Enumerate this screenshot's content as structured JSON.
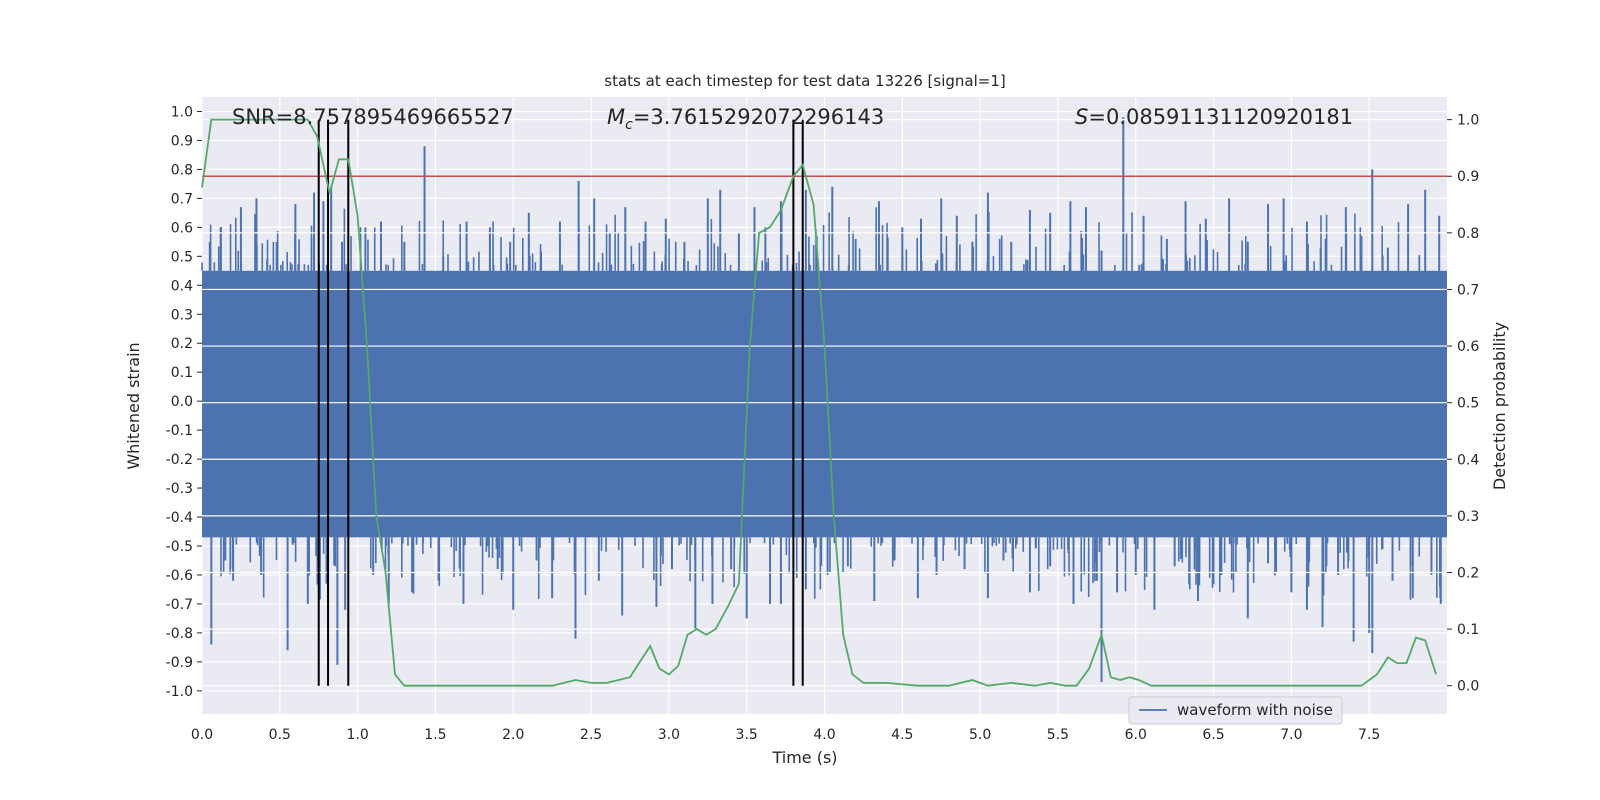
{
  "chart_data": {
    "type": "line",
    "title": "stats at each timestep for test data 13226 [signal=1]",
    "xlabel": "Time (s)",
    "ylabel_left": "Whitened strain",
    "ylabel_right": "Detection probability",
    "xlim": [
      0.0,
      8.0
    ],
    "ylim_left": [
      -1.08,
      1.05
    ],
    "ylim_right": [
      -0.05,
      1.04
    ],
    "x_ticks": [
      "0.0",
      "0.5",
      "1.0",
      "1.5",
      "2.0",
      "2.5",
      "3.0",
      "3.5",
      "4.0",
      "4.5",
      "5.0",
      "5.5",
      "6.0",
      "6.5",
      "7.0",
      "7.5"
    ],
    "y_ticks_left": [
      "1.0",
      "0.9",
      "0.8",
      "0.7",
      "0.6",
      "0.5",
      "0.4",
      "0.3",
      "0.2",
      "0.1",
      "0.0",
      "-0.1",
      "-0.2",
      "-0.3",
      "-0.4",
      "-0.5",
      "-0.6",
      "-0.7",
      "-0.8",
      "-0.9",
      "-1.0"
    ],
    "y_ticks_right": [
      "1.0",
      "0.9",
      "0.8",
      "0.7",
      "0.6",
      "0.5",
      "0.4",
      "0.3",
      "0.2",
      "0.1",
      "0.0"
    ],
    "annotations": {
      "snr": "SNR=8.757895469665527",
      "mc": "=3.7615292072296143",
      "mc_symbol": "M",
      "mc_sub": "c",
      "s": "=0.08591131120920181",
      "s_symbol": "S"
    },
    "threshold": {
      "value": 0.9,
      "axis": "right",
      "color": "#c44e52"
    },
    "vertical_lines": [
      0.75,
      0.81,
      0.94,
      3.8,
      3.86
    ],
    "grid": true,
    "legend": {
      "position": "lower-right",
      "entries": [
        "waveform with noise"
      ]
    },
    "series": [
      {
        "name": "waveform with noise",
        "axis": "left",
        "color": "#4c72b0",
        "dense_band": [
          -0.47,
          0.45
        ],
        "peaks_pos": [
          [
            0.05,
            0.55
          ],
          [
            0.12,
            0.6
          ],
          [
            0.25,
            0.67
          ],
          [
            0.35,
            0.7
          ],
          [
            0.48,
            0.55
          ],
          [
            0.6,
            0.68
          ],
          [
            0.72,
            0.72
          ],
          [
            0.78,
            0.69
          ],
          [
            0.83,
            0.74
          ],
          [
            0.9,
            0.55
          ],
          [
            1.05,
            0.6
          ],
          [
            1.15,
            0.62
          ],
          [
            1.3,
            0.55
          ],
          [
            1.43,
            0.88
          ],
          [
            1.55,
            0.5
          ],
          [
            1.7,
            0.62
          ],
          [
            1.85,
            0.6
          ],
          [
            1.98,
            0.55
          ],
          [
            2.1,
            0.65
          ],
          [
            2.3,
            0.62
          ],
          [
            2.42,
            0.76
          ],
          [
            2.52,
            0.7
          ],
          [
            2.62,
            0.58
          ],
          [
            2.72,
            0.67
          ],
          [
            2.85,
            0.62
          ],
          [
            2.98,
            0.63
          ],
          [
            3.1,
            0.55
          ],
          [
            3.25,
            0.7
          ],
          [
            3.33,
            0.73
          ],
          [
            3.45,
            0.58
          ],
          [
            3.55,
            0.67
          ],
          [
            3.62,
            0.6
          ],
          [
            3.72,
            0.69
          ],
          [
            3.88,
            0.73
          ],
          [
            3.95,
            0.57
          ],
          [
            4.05,
            0.74
          ],
          [
            4.2,
            0.56
          ],
          [
            4.35,
            0.69
          ],
          [
            4.5,
            0.6
          ],
          [
            4.62,
            0.63
          ],
          [
            4.75,
            0.7
          ],
          [
            4.85,
            0.64
          ],
          [
            4.95,
            0.55
          ],
          [
            5.05,
            0.72
          ],
          [
            5.2,
            0.55
          ],
          [
            5.32,
            0.66
          ],
          [
            5.45,
            0.65
          ],
          [
            5.58,
            0.69
          ],
          [
            5.68,
            0.67
          ],
          [
            5.78,
            0.52
          ],
          [
            5.92,
            0.98
          ],
          [
            6.05,
            0.64
          ],
          [
            6.2,
            0.56
          ],
          [
            6.32,
            0.69
          ],
          [
            6.45,
            0.63
          ],
          [
            6.6,
            0.7
          ],
          [
            6.72,
            0.55
          ],
          [
            6.85,
            0.68
          ],
          [
            6.95,
            0.7
          ],
          [
            7.1,
            0.62
          ],
          [
            7.22,
            0.56
          ],
          [
            7.35,
            0.67
          ],
          [
            7.45,
            0.57
          ],
          [
            7.52,
            0.8
          ],
          [
            7.62,
            0.53
          ],
          [
            7.75,
            0.68
          ],
          [
            7.86,
            0.73
          ],
          [
            7.95,
            0.64
          ]
        ],
        "peaks_neg": [
          [
            0.06,
            -0.84
          ],
          [
            0.15,
            -0.55
          ],
          [
            0.2,
            -0.62
          ],
          [
            0.38,
            -0.6
          ],
          [
            0.55,
            -0.86
          ],
          [
            0.68,
            -0.7
          ],
          [
            0.8,
            -0.63
          ],
          [
            0.87,
            -0.91
          ],
          [
            0.92,
            -0.72
          ],
          [
            1.1,
            -0.6
          ],
          [
            1.2,
            -0.7
          ],
          [
            1.35,
            -0.66
          ],
          [
            1.52,
            -0.62
          ],
          [
            1.68,
            -0.7
          ],
          [
            1.9,
            -0.58
          ],
          [
            2.0,
            -0.72
          ],
          [
            2.15,
            -0.55
          ],
          [
            2.25,
            -0.68
          ],
          [
            2.4,
            -0.82
          ],
          [
            2.55,
            -0.62
          ],
          [
            2.7,
            -0.74
          ],
          [
            2.92,
            -0.71
          ],
          [
            3.02,
            -0.58
          ],
          [
            3.17,
            -0.79
          ],
          [
            3.28,
            -0.7
          ],
          [
            3.4,
            -0.58
          ],
          [
            3.5,
            -0.75
          ],
          [
            3.65,
            -0.7
          ],
          [
            3.72,
            -0.7
          ],
          [
            3.88,
            -0.65
          ],
          [
            4.02,
            -0.6
          ],
          [
            4.15,
            -0.57
          ],
          [
            4.32,
            -0.69
          ],
          [
            4.45,
            -0.55
          ],
          [
            4.6,
            -0.68
          ],
          [
            4.72,
            -0.6
          ],
          [
            4.9,
            -0.58
          ],
          [
            5.05,
            -0.68
          ],
          [
            5.15,
            -0.55
          ],
          [
            5.32,
            -0.66
          ],
          [
            5.45,
            -0.57
          ],
          [
            5.6,
            -0.7
          ],
          [
            5.75,
            -0.62
          ],
          [
            5.78,
            -0.97
          ],
          [
            5.88,
            -0.66
          ],
          [
            6.0,
            -0.6
          ],
          [
            6.12,
            -0.72
          ],
          [
            6.25,
            -0.57
          ],
          [
            6.4,
            -0.69
          ],
          [
            6.55,
            -0.6
          ],
          [
            6.72,
            -0.75
          ],
          [
            6.85,
            -0.56
          ],
          [
            7.0,
            -0.66
          ],
          [
            7.1,
            -0.72
          ],
          [
            7.2,
            -0.78
          ],
          [
            7.3,
            -0.6
          ],
          [
            7.4,
            -0.83
          ],
          [
            7.5,
            -0.8
          ],
          [
            7.52,
            -0.87
          ],
          [
            7.65,
            -0.62
          ],
          [
            7.78,
            -0.68
          ],
          [
            7.9,
            -0.6
          ],
          [
            7.96,
            -0.7
          ]
        ]
      },
      {
        "name": "detection probability",
        "axis": "right",
        "color": "#55a868",
        "points": [
          [
            0.0,
            0.88
          ],
          [
            0.06,
            1.0
          ],
          [
            0.2,
            1.0
          ],
          [
            0.5,
            1.0
          ],
          [
            0.68,
            1.0
          ],
          [
            0.74,
            0.97
          ],
          [
            0.82,
            0.87
          ],
          [
            0.88,
            0.93
          ],
          [
            0.94,
            0.93
          ],
          [
            1.0,
            0.83
          ],
          [
            1.06,
            0.6
          ],
          [
            1.12,
            0.3
          ],
          [
            1.18,
            0.2
          ],
          [
            1.24,
            0.02
          ],
          [
            1.3,
            0.0
          ],
          [
            1.45,
            0.0
          ],
          [
            1.7,
            0.0
          ],
          [
            1.95,
            0.0
          ],
          [
            2.25,
            0.0
          ],
          [
            2.4,
            0.01
          ],
          [
            2.5,
            0.005
          ],
          [
            2.6,
            0.005
          ],
          [
            2.75,
            0.015
          ],
          [
            2.82,
            0.045
          ],
          [
            2.88,
            0.07
          ],
          [
            2.94,
            0.03
          ],
          [
            3.0,
            0.02
          ],
          [
            3.06,
            0.035
          ],
          [
            3.12,
            0.09
          ],
          [
            3.18,
            0.1
          ],
          [
            3.24,
            0.09
          ],
          [
            3.3,
            0.1
          ],
          [
            3.38,
            0.14
          ],
          [
            3.45,
            0.18
          ],
          [
            3.52,
            0.6
          ],
          [
            3.58,
            0.8
          ],
          [
            3.65,
            0.81
          ],
          [
            3.72,
            0.84
          ],
          [
            3.8,
            0.9
          ],
          [
            3.86,
            0.92
          ],
          [
            3.93,
            0.85
          ],
          [
            4.0,
            0.6
          ],
          [
            4.06,
            0.3
          ],
          [
            4.12,
            0.09
          ],
          [
            4.18,
            0.02
          ],
          [
            4.25,
            0.005
          ],
          [
            4.4,
            0.005
          ],
          [
            4.6,
            0.0
          ],
          [
            4.8,
            0.0
          ],
          [
            4.95,
            0.01
          ],
          [
            5.05,
            0.0
          ],
          [
            5.2,
            0.005
          ],
          [
            5.35,
            0.0
          ],
          [
            5.45,
            0.005
          ],
          [
            5.55,
            0.0
          ],
          [
            5.62,
            0.0
          ],
          [
            5.7,
            0.03
          ],
          [
            5.78,
            0.09
          ],
          [
            5.84,
            0.015
          ],
          [
            5.9,
            0.01
          ],
          [
            5.96,
            0.015
          ],
          [
            6.02,
            0.01
          ],
          [
            6.1,
            0.0
          ],
          [
            6.3,
            0.0
          ],
          [
            6.5,
            0.0
          ],
          [
            6.7,
            0.0
          ],
          [
            6.9,
            0.0
          ],
          [
            7.1,
            0.0
          ],
          [
            7.3,
            0.0
          ],
          [
            7.45,
            0.0
          ],
          [
            7.55,
            0.02
          ],
          [
            7.62,
            0.05
          ],
          [
            7.68,
            0.04
          ],
          [
            7.74,
            0.04
          ],
          [
            7.8,
            0.085
          ],
          [
            7.86,
            0.08
          ],
          [
            7.93,
            0.02
          ]
        ]
      }
    ]
  }
}
